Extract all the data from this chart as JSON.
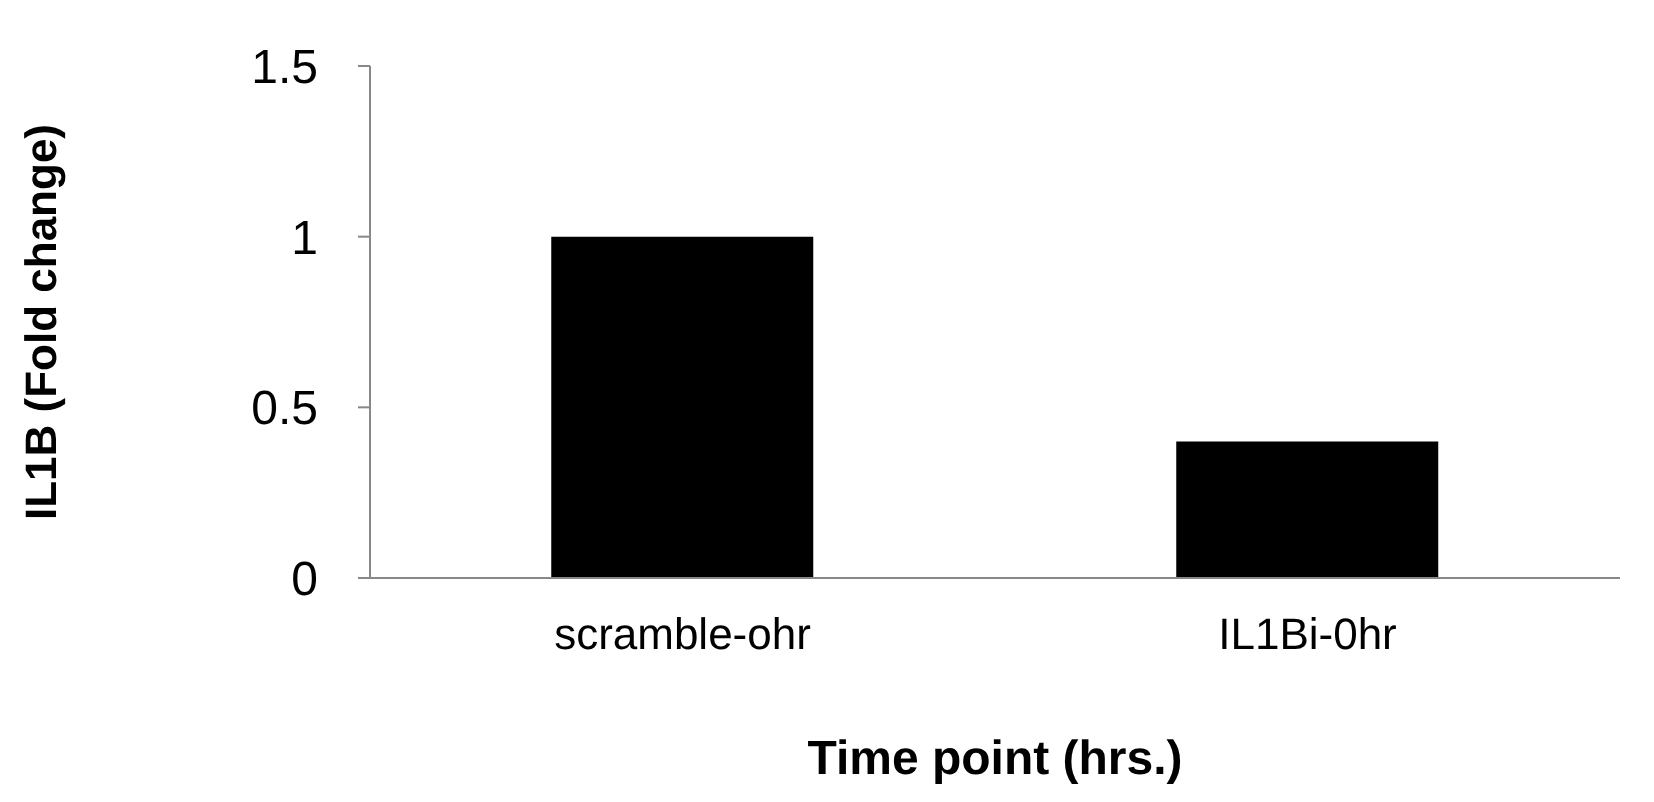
{
  "chart_data": {
    "type": "bar",
    "xlabel": "Time point (hrs.)",
    "ylabel": "IL1B (Fold change)",
    "categories": [
      "scramble-ohr",
      "IL1Bi-0hr"
    ],
    "values": [
      1.0,
      0.4
    ],
    "color": "#000000",
    "ylim": [
      0,
      1.5
    ],
    "yticks": [
      0,
      0.5,
      1,
      1.5
    ],
    "grid": false,
    "legend": false
  }
}
